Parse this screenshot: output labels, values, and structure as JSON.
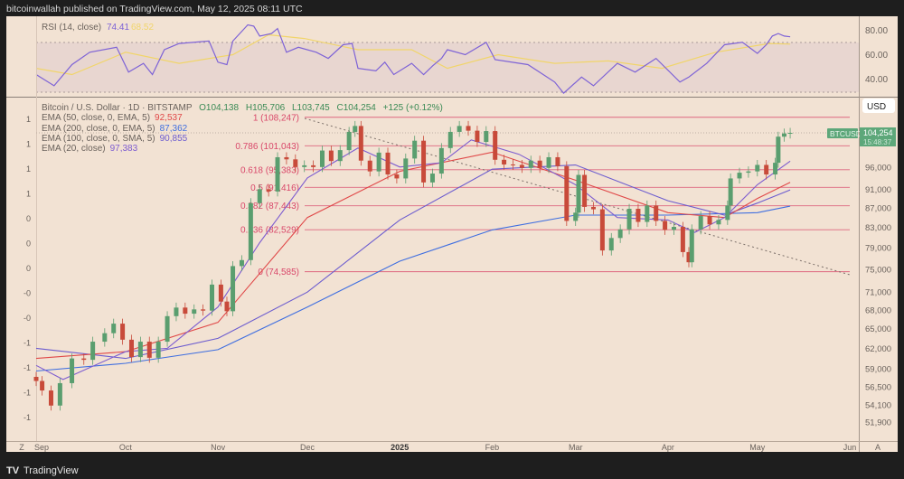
{
  "header": {
    "published": "bitcoinwallah published on TradingView.com, May 12, 2025 08:11 UTC"
  },
  "footer": {
    "brand": "TradingView"
  },
  "colors": {
    "background": "#f2e2d3",
    "up": "#5a9e6f",
    "down": "#c84a3a",
    "fib": "#d9486a",
    "ema50": "#e04848",
    "ema200": "#3f6ee0",
    "sma100": "#6c5ccf",
    "ema20": "#7d5cd0",
    "rsi": "#7d62d6",
    "rsi_ma": "#f1d56a"
  },
  "rsi_pane": {
    "label": "RSI (14, close)",
    "value": "74.41",
    "ma_value": "68.52",
    "ticks": [
      "80.00",
      "60.00",
      "40.00"
    ]
  },
  "main_pane": {
    "symbol": "Bitcoin / U.S. Dollar · 1D · BITSTAMP",
    "open": "O104,138",
    "high": "H105,706",
    "low": "L103,745",
    "close": "C104,254",
    "change": "+125 (+0.12%)",
    "indicators": [
      {
        "label": "EMA (50, close, 0, EMA, 5)",
        "value": "92,537"
      },
      {
        "label": "EMA (200, close, 0, EMA, 5)",
        "value": "87,362"
      },
      {
        "label": "EMA (100, close, 0, SMA, 5)",
        "value": "90,855"
      },
      {
        "label": "EMA (20, close)",
        "value": "97,383"
      }
    ],
    "currency_button": "USD",
    "symbol_tag": "BTCUSD",
    "last_price": "104,254",
    "countdown": "15:48:37",
    "left_axis_labels": [
      "1",
      "1",
      "1",
      "1",
      "0",
      "0",
      "0",
      "-0",
      "-0",
      "-1",
      "-1",
      "-1",
      "-1"
    ],
    "time_axis_corner_left": "Z",
    "time_axis_corner_right": "A"
  },
  "chart_data": {
    "type": "candlestick",
    "scale": "log",
    "price_ticks": [
      "96,000",
      "91,000",
      "87,000",
      "83,000",
      "79,000",
      "75,000",
      "71,000",
      "68,000",
      "65,000",
      "62,000",
      "59,000",
      "56,500",
      "54,100",
      "51,900"
    ],
    "time_ticks": [
      "Sep",
      "Oct",
      "Nov",
      "Dec",
      "2025",
      "Feb",
      "Mar",
      "Apr",
      "May",
      "Jun"
    ],
    "fib_levels": [
      {
        "label": "1 (108,247)",
        "value": 108247
      },
      {
        "label": "0.786 (101,043)",
        "value": 101043
      },
      {
        "label": "0.618 (95,383)",
        "value": 95383
      },
      {
        "label": "0.5 (91,416)",
        "value": 91416
      },
      {
        "label": "0.382 (87,443)",
        "value": 87443
      },
      {
        "label": "0.236 (82,529)",
        "value": 82529
      },
      {
        "label": "0 (74,585)",
        "value": 74585
      }
    ],
    "closes": [
      [
        "2024-09-01",
        57300
      ],
      [
        "2024-09-03",
        56000
      ],
      [
        "2024-09-06",
        54000
      ],
      [
        "2024-09-09",
        57000
      ],
      [
        "2024-09-13",
        60500
      ],
      [
        "2024-09-17",
        60300
      ],
      [
        "2024-09-20",
        63000
      ],
      [
        "2024-09-24",
        64300
      ],
      [
        "2024-09-27",
        65800
      ],
      [
        "2024-09-30",
        63300
      ],
      [
        "2024-10-03",
        60700
      ],
      [
        "2024-10-06",
        63000
      ],
      [
        "2024-10-09",
        60600
      ],
      [
        "2024-10-12",
        63000
      ],
      [
        "2024-10-15",
        67000
      ],
      [
        "2024-10-18",
        68400
      ],
      [
        "2024-10-21",
        67400
      ],
      [
        "2024-10-24",
        68100
      ],
      [
        "2024-10-27",
        67900
      ],
      [
        "2024-10-30",
        72300
      ],
      [
        "2024-11-02",
        69400
      ],
      [
        "2024-11-04",
        67800
      ],
      [
        "2024-11-06",
        75600
      ],
      [
        "2024-11-09",
        76700
      ],
      [
        "2024-11-12",
        88000
      ],
      [
        "2024-11-15",
        91000
      ],
      [
        "2024-11-18",
        90500
      ],
      [
        "2024-11-21",
        98300
      ],
      [
        "2024-11-24",
        97800
      ],
      [
        "2024-11-27",
        96000
      ],
      [
        "2024-11-30",
        96400
      ],
      [
        "2024-12-03",
        96000
      ],
      [
        "2024-12-06",
        99900
      ],
      [
        "2024-12-09",
        97400
      ],
      [
        "2024-12-12",
        100000
      ],
      [
        "2024-12-15",
        104500
      ],
      [
        "2024-12-17",
        106000
      ],
      [
        "2024-12-19",
        97500
      ],
      [
        "2024-12-22",
        95000
      ],
      [
        "2024-12-25",
        99400
      ],
      [
        "2024-12-28",
        94300
      ],
      [
        "2024-12-31",
        93400
      ],
      [
        "2025-01-03",
        98000
      ],
      [
        "2025-01-06",
        102300
      ],
      [
        "2025-01-09",
        92500
      ],
      [
        "2025-01-12",
        94500
      ],
      [
        "2025-01-15",
        100500
      ],
      [
        "2025-01-18",
        104500
      ],
      [
        "2025-01-21",
        106000
      ],
      [
        "2025-01-24",
        104800
      ],
      [
        "2025-01-27",
        102000
      ],
      [
        "2025-01-30",
        104700
      ],
      [
        "2025-02-02",
        97700
      ],
      [
        "2025-02-05",
        96600
      ],
      [
        "2025-02-08",
        96500
      ],
      [
        "2025-02-11",
        95800
      ],
      [
        "2025-02-14",
        97500
      ],
      [
        "2025-02-17",
        95800
      ],
      [
        "2025-02-20",
        98300
      ],
      [
        "2025-02-23",
        96200
      ],
      [
        "2025-02-26",
        84300
      ],
      [
        "2025-03-01",
        86000
      ],
      [
        "2025-03-02",
        94200
      ],
      [
        "2025-03-04",
        87200
      ],
      [
        "2025-03-07",
        86700
      ],
      [
        "2025-03-10",
        78500
      ],
      [
        "2025-03-13",
        80900
      ],
      [
        "2025-03-16",
        82600
      ],
      [
        "2025-03-19",
        86800
      ],
      [
        "2025-03-22",
        84100
      ],
      [
        "2025-03-25",
        87500
      ],
      [
        "2025-03-28",
        84300
      ],
      [
        "2025-03-31",
        82500
      ],
      [
        "2025-04-03",
        83100
      ],
      [
        "2025-04-06",
        78200
      ],
      [
        "2025-04-08",
        76300
      ],
      [
        "2025-04-09",
        82600
      ],
      [
        "2025-04-12",
        85300
      ],
      [
        "2025-04-15",
        83600
      ],
      [
        "2025-04-18",
        84500
      ],
      [
        "2025-04-21",
        87500
      ],
      [
        "2025-04-22",
        93400
      ],
      [
        "2025-04-25",
        94700
      ],
      [
        "2025-04-28",
        95000
      ],
      [
        "2025-05-01",
        96500
      ],
      [
        "2025-05-04",
        94300
      ],
      [
        "2025-05-07",
        97000
      ],
      [
        "2025-05-08",
        103300
      ],
      [
        "2025-05-10",
        104100
      ],
      [
        "2025-05-12",
        104254
      ]
    ],
    "ema200": [
      [
        "2024-09-01",
        58700
      ],
      [
        "2024-10-01",
        59800
      ],
      [
        "2024-11-01",
        61800
      ],
      [
        "2024-12-01",
        68500
      ],
      [
        "2025-01-01",
        76500
      ],
      [
        "2025-02-01",
        82500
      ],
      [
        "2025-03-01",
        85500
      ],
      [
        "2025-04-01",
        85500
      ],
      [
        "2025-05-01",
        86000
      ],
      [
        "2025-05-12",
        87362
      ]
    ],
    "sma100": [
      [
        "2024-09-01",
        62000
      ],
      [
        "2024-10-01",
        60500
      ],
      [
        "2024-11-01",
        63500
      ],
      [
        "2024-12-01",
        71000
      ],
      [
        "2025-01-01",
        84500
      ],
      [
        "2025-02-01",
        95500
      ],
      [
        "2025-03-01",
        96500
      ],
      [
        "2025-04-01",
        88500
      ],
      [
        "2025-04-20",
        85500
      ],
      [
        "2025-05-01",
        88000
      ],
      [
        "2025-05-12",
        90855
      ]
    ],
    "ema50": [
      [
        "2024-09-01",
        60500
      ],
      [
        "2024-10-01",
        61500
      ],
      [
        "2024-11-01",
        66000
      ],
      [
        "2024-12-01",
        85000
      ],
      [
        "2025-01-01",
        95000
      ],
      [
        "2025-02-01",
        99500
      ],
      [
        "2025-03-01",
        93000
      ],
      [
        "2025-04-01",
        86000
      ],
      [
        "2025-04-20",
        85000
      ],
      [
        "2025-05-01",
        89000
      ],
      [
        "2025-05-12",
        92537
      ]
    ],
    "ema20": [
      [
        "2024-09-01",
        59500
      ],
      [
        "2024-09-10",
        57500
      ],
      [
        "2024-10-01",
        61500
      ],
      [
        "2024-10-15",
        62000
      ],
      [
        "2024-11-01",
        68500
      ],
      [
        "2024-11-15",
        80000
      ],
      [
        "2024-12-01",
        93500
      ],
      [
        "2024-12-18",
        100500
      ],
      [
        "2025-01-01",
        96000
      ],
      [
        "2025-01-15",
        97000
      ],
      [
        "2025-01-25",
        102500
      ],
      [
        "2025-02-10",
        99000
      ],
      [
        "2025-03-01",
        92000
      ],
      [
        "2025-03-15",
        85000
      ],
      [
        "2025-04-01",
        84500
      ],
      [
        "2025-04-10",
        82000
      ],
      [
        "2025-04-20",
        85000
      ],
      [
        "2025-05-01",
        92000
      ],
      [
        "2025-05-12",
        97383
      ]
    ],
    "rsi": [
      [
        "2024-09-01",
        44
      ],
      [
        "2024-09-07",
        35
      ],
      [
        "2024-09-13",
        52
      ],
      [
        "2024-09-19",
        62
      ],
      [
        "2024-09-28",
        66
      ],
      [
        "2024-10-02",
        46
      ],
      [
        "2024-10-07",
        53
      ],
      [
        "2024-10-10",
        44
      ],
      [
        "2024-10-14",
        64
      ],
      [
        "2024-10-19",
        69
      ],
      [
        "2024-10-29",
        71
      ],
      [
        "2024-11-01",
        54
      ],
      [
        "2024-11-04",
        52
      ],
      [
        "2024-11-06",
        71
      ],
      [
        "2024-11-11",
        84
      ],
      [
        "2024-11-13",
        83
      ],
      [
        "2024-11-15",
        75
      ],
      [
        "2024-11-19",
        77
      ],
      [
        "2024-11-21",
        81
      ],
      [
        "2024-11-24",
        62
      ],
      [
        "2024-11-28",
        66
      ],
      [
        "2024-12-04",
        62
      ],
      [
        "2024-12-08",
        57
      ],
      [
        "2024-12-13",
        68
      ],
      [
        "2024-12-16",
        69
      ],
      [
        "2024-12-18",
        49
      ],
      [
        "2024-12-24",
        47
      ],
      [
        "2024-12-27",
        54
      ],
      [
        "2024-12-30",
        44
      ],
      [
        "2025-01-05",
        53
      ],
      [
        "2025-01-09",
        44
      ],
      [
        "2025-01-12",
        51
      ],
      [
        "2025-01-15",
        57
      ],
      [
        "2025-01-17",
        64
      ],
      [
        "2025-01-23",
        60
      ],
      [
        "2025-01-30",
        70
      ],
      [
        "2025-02-02",
        56
      ],
      [
        "2025-02-13",
        52
      ],
      [
        "2025-02-22",
        38
      ],
      [
        "2025-02-25",
        29
      ],
      [
        "2025-03-03",
        42
      ],
      [
        "2025-03-07",
        35
      ],
      [
        "2025-03-15",
        53
      ],
      [
        "2025-03-21",
        46
      ],
      [
        "2025-03-28",
        57
      ],
      [
        "2025-04-05",
        38
      ],
      [
        "2025-04-08",
        42
      ],
      [
        "2025-04-14",
        53
      ],
      [
        "2025-04-20",
        68
      ],
      [
        "2025-04-26",
        70
      ],
      [
        "2025-05-01",
        61
      ],
      [
        "2025-05-04",
        68
      ],
      [
        "2025-05-06",
        75
      ],
      [
        "2025-05-08",
        77
      ],
      [
        "2025-05-10",
        75
      ],
      [
        "2025-05-12",
        74.41
      ]
    ],
    "rsi_ma": [
      [
        "2024-09-01",
        49
      ],
      [
        "2024-09-13",
        44
      ],
      [
        "2024-10-01",
        62
      ],
      [
        "2024-10-19",
        53
      ],
      [
        "2024-11-06",
        60
      ],
      [
        "2024-11-18",
        76
      ],
      [
        "2024-11-30",
        73
      ],
      [
        "2024-12-18",
        64
      ],
      [
        "2025-01-05",
        64
      ],
      [
        "2025-01-17",
        49
      ],
      [
        "2025-02-03",
        60
      ],
      [
        "2025-02-22",
        53
      ],
      [
        "2025-03-12",
        55
      ],
      [
        "2025-03-30",
        49
      ],
      [
        "2025-04-17",
        62
      ],
      [
        "2025-05-05",
        69
      ],
      [
        "2025-05-12",
        68.52
      ]
    ]
  }
}
